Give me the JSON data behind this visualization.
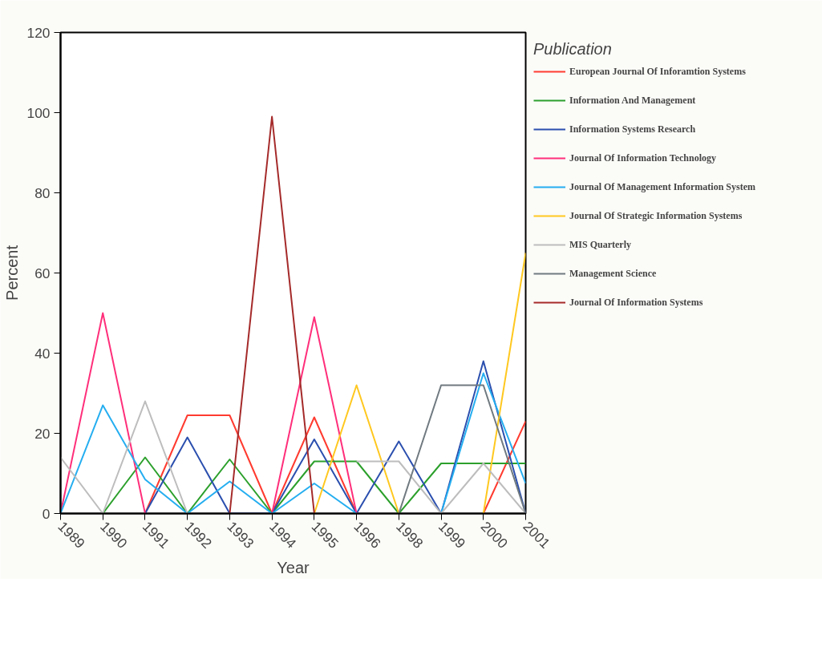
{
  "chart_data": {
    "type": "line",
    "xlabel": "Year",
    "ylabel": "Percent",
    "legend_title": "Publication",
    "legend": "right",
    "grid": false,
    "categories": [
      "1989",
      "1990",
      "1991",
      "1992",
      "1993",
      "1994",
      "1995",
      "1996",
      "1998",
      "1999",
      "2000",
      "2001"
    ],
    "ylim": [
      0,
      120
    ],
    "yticks": [
      0,
      20,
      40,
      60,
      80,
      100,
      120
    ],
    "series": [
      {
        "name": "European Journal Of Inforamtion Systems",
        "color": "#ff3b30",
        "values": [
          null,
          null,
          0,
          24.5,
          24.5,
          0,
          24,
          0,
          null,
          null,
          0,
          23
        ]
      },
      {
        "name": "Information And Management",
        "color": "#2ca02c",
        "values": [
          null,
          0,
          14,
          0,
          13.5,
          0,
          13,
          13,
          0,
          12.5,
          12.5,
          12.5
        ]
      },
      {
        "name": "Information Systems Research",
        "color": "#2b4fae",
        "values": [
          null,
          null,
          0,
          19,
          0,
          0,
          18.5,
          0,
          18,
          0,
          38,
          0
        ]
      },
      {
        "name": "Journal Of Information Technology",
        "color": "#ff2f7a",
        "values": [
          0,
          50,
          0,
          null,
          null,
          0,
          49,
          0,
          null,
          null,
          null,
          null
        ]
      },
      {
        "name": "Journal Of Management Information System",
        "color": "#25aef0",
        "values": [
          0,
          27,
          8.5,
          0,
          8,
          0,
          7.5,
          0,
          null,
          0,
          35,
          7.5
        ]
      },
      {
        "name": "Journal Of Strategic Information Systems",
        "color": "#ffc820",
        "values": [
          null,
          null,
          null,
          null,
          null,
          null,
          0,
          32,
          0,
          null,
          0,
          65
        ]
      },
      {
        "name": "MIS Quarterly",
        "color": "#bdbdbd",
        "values": [
          14,
          0,
          28,
          0,
          null,
          null,
          null,
          13,
          13,
          0,
          12.5,
          0
        ]
      },
      {
        "name": "Management Science",
        "color": "#707a80",
        "values": [
          null,
          null,
          null,
          null,
          null,
          null,
          null,
          null,
          0,
          32,
          32,
          0
        ]
      },
      {
        "name": "Journal Of Information Systems",
        "color": "#a52a2a",
        "values": [
          null,
          null,
          null,
          null,
          0,
          99,
          0,
          null,
          null,
          null,
          null,
          null
        ]
      }
    ]
  }
}
